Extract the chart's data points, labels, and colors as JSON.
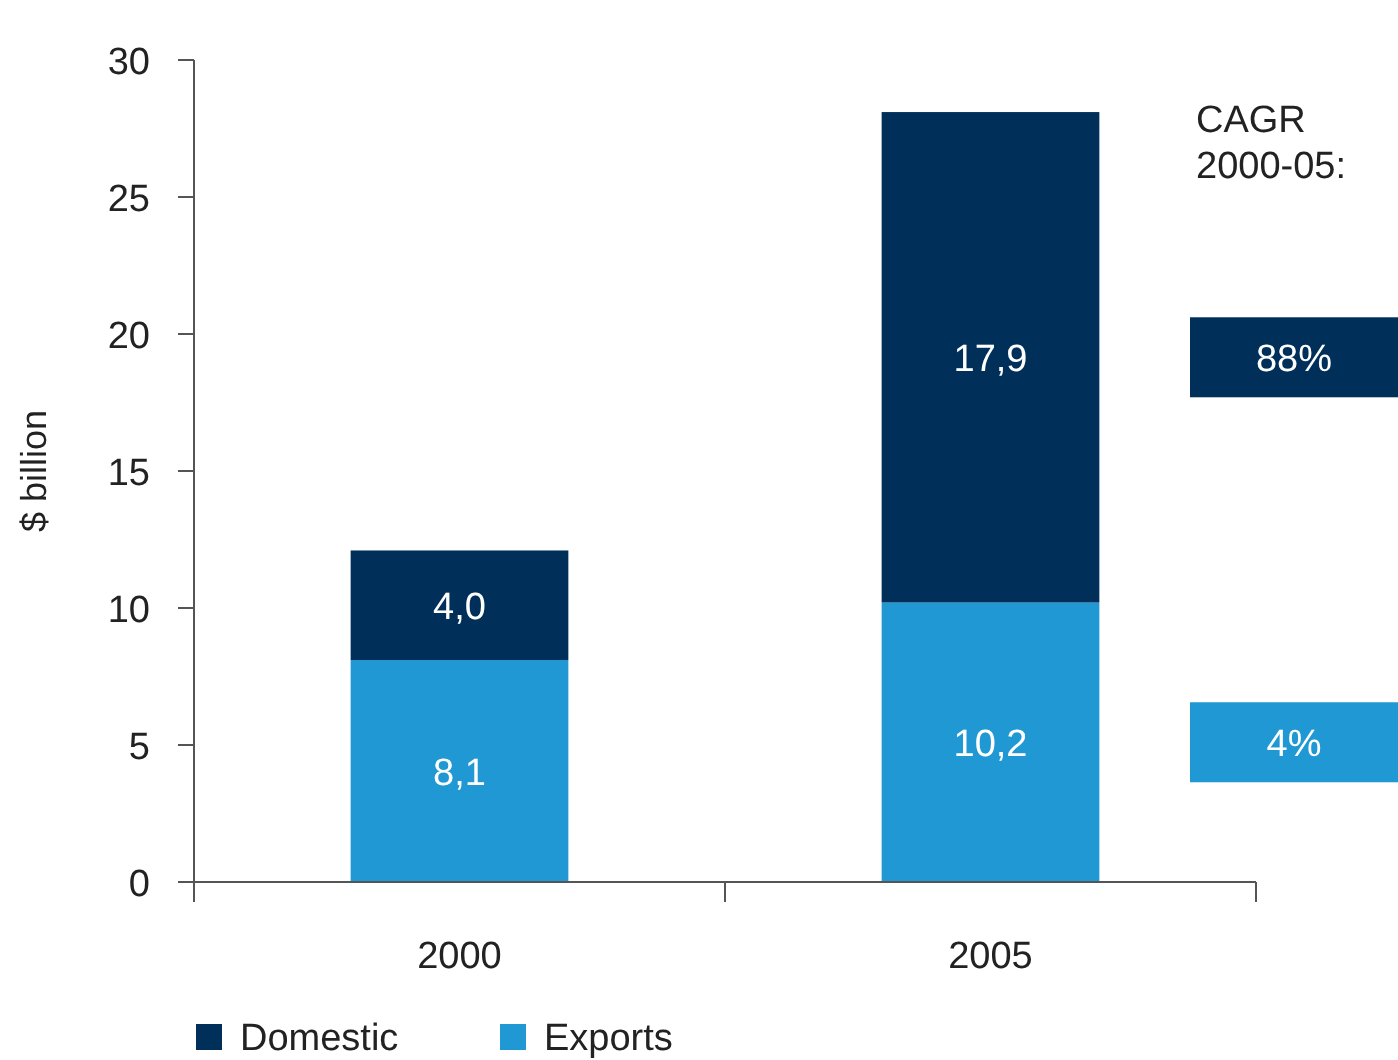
{
  "chart_data": {
    "type": "bar",
    "stacked": true,
    "ylabel": "$ billion",
    "categories": [
      "2000",
      "2005"
    ],
    "series": [
      {
        "name": "Exports",
        "color": "#1f98d3",
        "values": [
          8.1,
          10.2
        ],
        "value_labels": [
          "8,1",
          "10,2"
        ]
      },
      {
        "name": "Domestic",
        "color": "#00305a",
        "values": [
          4.0,
          17.9
        ],
        "value_labels": [
          "4,0",
          "17,9"
        ]
      }
    ],
    "ylim": [
      0,
      30
    ],
    "yticks": [
      0,
      5,
      10,
      15,
      20,
      25,
      30
    ],
    "grid": false,
    "legend": "bottom left",
    "annotations": [
      "CAGR 2000-05:",
      "4%",
      "88%"
    ]
  }
}
